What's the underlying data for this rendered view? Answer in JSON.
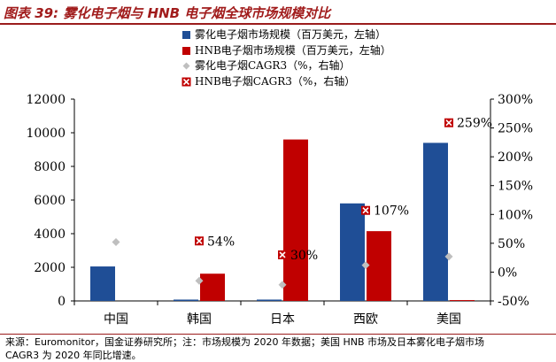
{
  "title": "图表 39:  雾化电子烟与 HNB 电子烟全球市场规模对比",
  "legend": [
    {
      "label": "雾化电子烟市场规模（百万美元，左轴）",
      "symbol": "square",
      "color": "#1f4e96"
    },
    {
      "label": "HNB电子烟市场规模（百万美元，左轴）",
      "symbol": "square",
      "color": "#c00000"
    },
    {
      "label": "雾化电子烟CAGR3（%，右轴）",
      "symbol": "diamond",
      "color": "#bfbfbf"
    },
    {
      "label": "HNB电子烟CAGR3（%，右轴）",
      "symbol": "x-square",
      "color": "#c00000"
    }
  ],
  "chart_data": {
    "type": "bar",
    "categories": [
      "中国",
      "韩国",
      "日本",
      "西欧",
      "美国"
    ],
    "series": [
      {
        "name": "雾化电子烟市场规模（百万美元，左轴）",
        "kind": "bar",
        "axis": "left",
        "color": "#1f4e96",
        "values": [
          2050,
          80,
          80,
          5800,
          9400
        ]
      },
      {
        "name": "HNB电子烟市场规模（百万美元，左轴）",
        "kind": "bar",
        "axis": "left",
        "color": "#c00000",
        "values": [
          0,
          1620,
          9600,
          4150,
          50
        ]
      },
      {
        "name": "雾化电子烟CAGR3（%，右轴）",
        "kind": "marker-diamond",
        "axis": "right",
        "color": "#bfbfbf",
        "values": [
          52,
          -15,
          -22,
          12,
          27
        ]
      },
      {
        "name": "HNB电子烟CAGR3（%，右轴）",
        "kind": "marker-x-square",
        "axis": "right",
        "color": "#c00000",
        "values": [
          null,
          54,
          30,
          107,
          259
        ],
        "labels": [
          null,
          "54%",
          "30%",
          "107%",
          "259%"
        ]
      }
    ],
    "y_left": {
      "min": 0,
      "max": 12000,
      "ticks": [
        "0",
        "2000",
        "4000",
        "6000",
        "8000",
        "10000",
        "12000"
      ],
      "tick_values": [
        0,
        2000,
        4000,
        6000,
        8000,
        10000,
        12000
      ]
    },
    "y_right": {
      "min": -50,
      "max": 300,
      "ticks": [
        "-50%",
        "0%",
        "50%",
        "100%",
        "150%",
        "200%",
        "250%",
        "300%"
      ],
      "tick_values": [
        -50,
        0,
        50,
        100,
        150,
        200,
        250,
        300
      ]
    },
    "grid": false,
    "legend_position": "top"
  },
  "footer": {
    "line1": "来源：Euromonitor，国金证券研究所；注：市场规模为 2020 年数据；美国 HNB 市场及日本雾化电子烟市场",
    "line2": "CAGR3 为 2020 年同比增速。"
  }
}
